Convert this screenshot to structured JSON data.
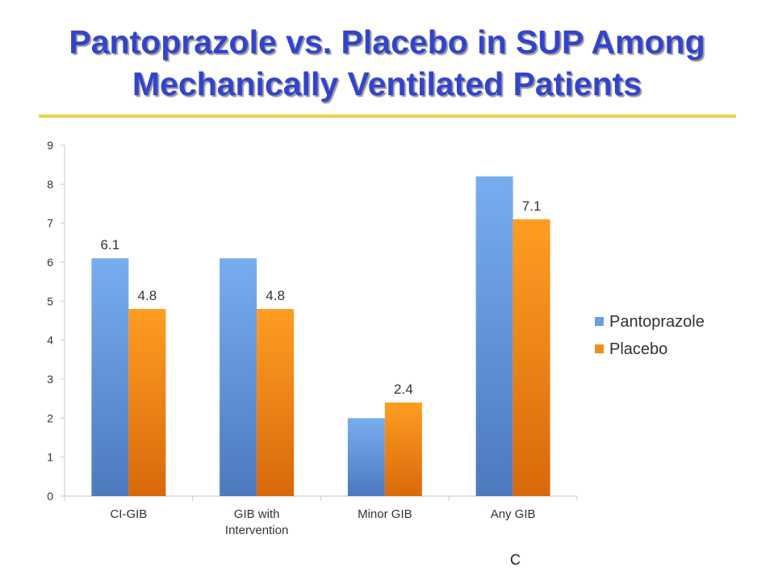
{
  "title_line1": "Pantoprazole vs. Placebo in SUP Among",
  "title_line2": "Mechanically Ventilated Patients",
  "footer_fragment": "C",
  "colors": {
    "title": "#3344cc",
    "rule": "#e8d44a",
    "pantoprazole": "#6a9fe0",
    "placebo": "#f0901a"
  },
  "chart_data": {
    "type": "bar",
    "categories": [
      [
        "CI-GIB"
      ],
      [
        "GIB with",
        "Intervention"
      ],
      [
        "Minor GIB"
      ],
      [
        "Any GIB"
      ]
    ],
    "series": [
      {
        "name": "Pantoprazole",
        "values": [
          6.1,
          6.1,
          2.0,
          8.2
        ],
        "labels": [
          "6.1",
          "",
          "",
          ""
        ]
      },
      {
        "name": "Placebo",
        "values": [
          4.8,
          4.8,
          2.4,
          7.1
        ],
        "labels": [
          "4.8",
          "4.8",
          "2.4",
          "7.1"
        ]
      }
    ],
    "ylim": [
      0,
      9
    ],
    "yticks": [
      0,
      1,
      2,
      3,
      4,
      5,
      6,
      7,
      8,
      9
    ],
    "xlabel": "",
    "ylabel": "",
    "grid": false,
    "legend": "right"
  }
}
